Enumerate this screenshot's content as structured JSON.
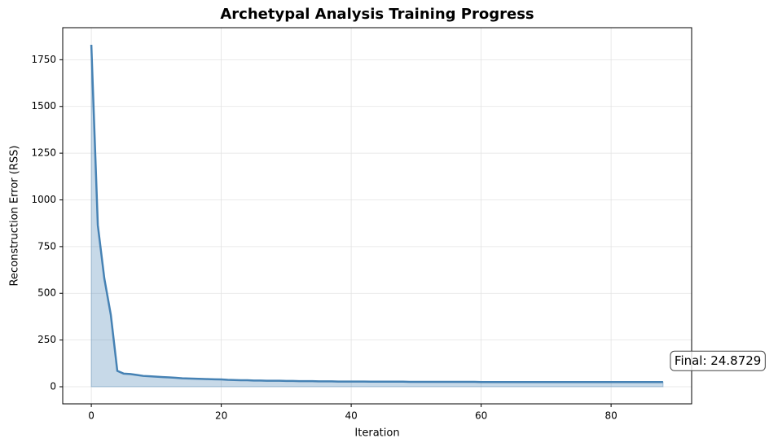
{
  "chart_data": {
    "type": "line",
    "title": "Archetypal Analysis Training Progress",
    "x_label": "Iteration",
    "y_label": "Reconstruction Error (RSS)",
    "x": [
      0,
      1,
      2,
      3,
      4,
      5,
      6,
      7,
      8,
      9,
      10,
      11,
      12,
      13,
      14,
      15,
      16,
      17,
      18,
      19,
      20,
      21,
      22,
      23,
      24,
      25,
      26,
      27,
      28,
      29,
      30,
      31,
      32,
      33,
      34,
      35,
      36,
      37,
      38,
      39,
      40,
      41,
      42,
      43,
      44,
      45,
      46,
      47,
      48,
      49,
      50,
      51,
      52,
      53,
      54,
      55,
      56,
      57,
      58,
      59,
      60,
      61,
      62,
      63,
      64,
      65,
      66,
      67,
      68,
      69,
      70,
      71,
      72,
      73,
      74,
      75,
      76,
      77,
      78,
      79,
      80,
      81,
      82,
      83,
      84,
      85,
      86,
      87,
      88
    ],
    "values": [
      1830,
      865,
      580,
      385,
      85,
      70,
      68,
      63,
      58,
      56,
      54,
      52,
      50,
      48,
      45,
      44,
      43,
      42,
      41,
      40,
      39,
      37,
      36,
      35,
      35,
      33,
      33,
      32,
      32,
      32,
      31,
      31,
      30,
      30,
      30,
      29,
      29,
      29,
      28,
      28,
      28,
      28,
      28,
      27,
      27,
      27,
      27,
      27,
      27,
      26,
      26,
      26,
      26,
      26,
      26,
      26,
      26,
      26,
      26,
      26,
      25,
      25,
      25,
      25,
      25,
      25,
      25,
      25,
      25,
      25,
      25,
      25,
      25,
      25,
      25,
      25,
      25,
      25,
      25,
      25,
      25,
      25,
      25,
      25,
      25,
      25,
      25,
      25,
      24.8729
    ],
    "color": "#4682b4",
    "fill": true,
    "annotation": "Final: 24.8729",
    "xlim": [
      -4.4,
      92.4
    ],
    "xticks": [
      0,
      20,
      40,
      60,
      80
    ],
    "ylim": [
      -91.5,
      1921.5
    ],
    "yticks": [
      0,
      250,
      500,
      750,
      1000,
      1250,
      1500,
      1750
    ],
    "grid": true
  }
}
